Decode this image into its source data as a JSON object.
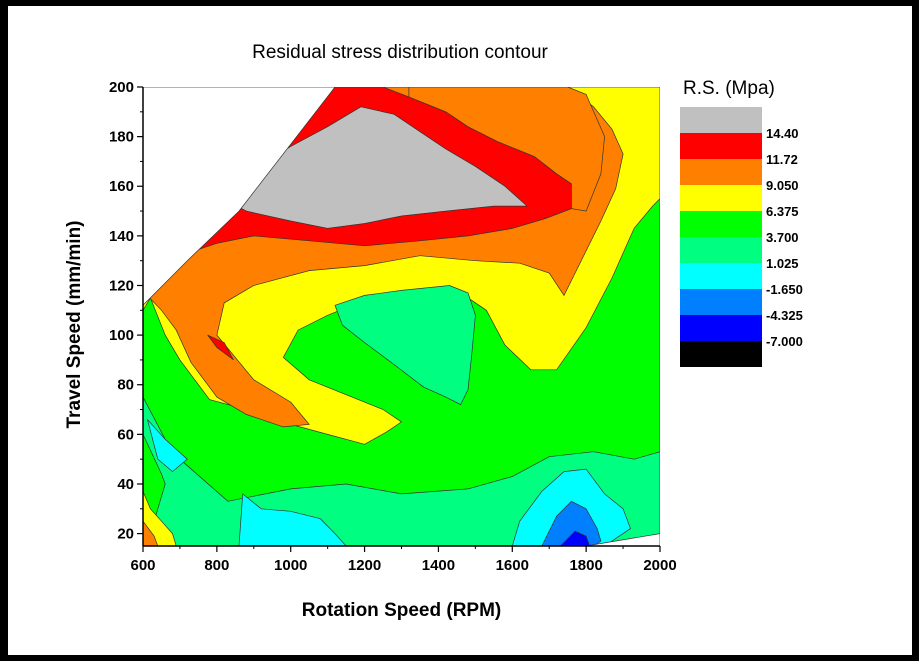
{
  "chart_data": {
    "type": "contour",
    "title": "Residual stress distribution contour",
    "xlabel": "Rotation Speed (RPM)",
    "ylabel": "Travel Speed (mm/min)",
    "xlim": [
      600,
      2000
    ],
    "ylim": [
      15,
      200
    ],
    "x_ticks": [
      600,
      800,
      1000,
      1200,
      1400,
      1600,
      1800,
      2000
    ],
    "y_ticks": [
      20,
      40,
      60,
      80,
      100,
      120,
      140,
      160,
      180,
      200
    ],
    "legend": {
      "title": "R.S. (Mpa)",
      "position": "right",
      "levels": [
        "14.40",
        "11.72",
        "9.050",
        "6.375",
        "3.700",
        "1.025",
        "-1.650",
        "-4.325",
        "-7.000"
      ],
      "colors": [
        "#c0c0c0",
        "#ff0000",
        "#ff8000",
        "#ffff00",
        "#00ff00",
        "#00ff80",
        "#00ffff",
        "#0080ff",
        "#0000ff",
        "#000000"
      ]
    },
    "regions": [
      {
        "level": "1.025 to 3.700",
        "color": "#00ff80",
        "points": [
          [
            600,
            67
          ],
          [
            600,
            15
          ],
          [
            2000,
            15
          ],
          [
            2000,
            200
          ],
          [
            1300,
            200
          ],
          [
            1000,
            200
          ],
          [
            800,
            200
          ],
          [
            600,
            200
          ],
          [
            600,
            80
          ]
        ]
      },
      {
        "level": "3.700 to 6.375",
        "color": "#00ff00",
        "points": [
          [
            600,
            97
          ],
          [
            600,
            75
          ],
          [
            660,
            58
          ],
          [
            700,
            50
          ],
          [
            830,
            33
          ],
          [
            1000,
            38
          ],
          [
            1150,
            40
          ],
          [
            1300,
            36
          ],
          [
            1480,
            38
          ],
          [
            1600,
            43
          ],
          [
            1700,
            51
          ],
          [
            1820,
            53
          ],
          [
            1930,
            50
          ],
          [
            2000,
            53
          ],
          [
            2000,
            200
          ],
          [
            600,
            200
          ]
        ]
      },
      {
        "level": "6.375 to 9.050",
        "color": "#ffff00",
        "points": [
          [
            600,
            110
          ],
          [
            620,
            115
          ],
          [
            660,
            100
          ],
          [
            700,
            90
          ],
          [
            780,
            74
          ],
          [
            880,
            70
          ],
          [
            1000,
            64
          ],
          [
            1100,
            60
          ],
          [
            1200,
            56
          ],
          [
            1260,
            61
          ],
          [
            1300,
            65
          ],
          [
            1250,
            70
          ],
          [
            1150,
            76
          ],
          [
            1050,
            82
          ],
          [
            980,
            91
          ],
          [
            1020,
            102
          ],
          [
            1100,
            108
          ],
          [
            1200,
            114
          ],
          [
            1350,
            118
          ],
          [
            1450,
            118
          ],
          [
            1530,
            110
          ],
          [
            1580,
            96
          ],
          [
            1650,
            86
          ],
          [
            1720,
            86
          ],
          [
            1800,
            103
          ],
          [
            1870,
            123
          ],
          [
            1930,
            143
          ],
          [
            1980,
            152
          ],
          [
            2000,
            155
          ],
          [
            2000,
            200
          ],
          [
            600,
            200
          ]
        ]
      },
      {
        "level": "9.050 to 11.72",
        "color": "#ff8000",
        "points": [
          [
            618,
            115
          ],
          [
            650,
            110
          ],
          [
            690,
            102
          ],
          [
            730,
            89
          ],
          [
            800,
            75
          ],
          [
            880,
            68
          ],
          [
            980,
            63
          ],
          [
            1050,
            64
          ],
          [
            1000,
            73
          ],
          [
            900,
            82
          ],
          [
            800,
            100
          ],
          [
            820,
            113
          ],
          [
            900,
            120
          ],
          [
            1050,
            126
          ],
          [
            1200,
            128
          ],
          [
            1350,
            132
          ],
          [
            1500,
            130
          ],
          [
            1620,
            129
          ],
          [
            1700,
            125
          ],
          [
            1740,
            116
          ],
          [
            1780,
            128
          ],
          [
            1840,
            146
          ],
          [
            1880,
            159
          ],
          [
            1900,
            173
          ],
          [
            1870,
            183
          ],
          [
            1820,
            192
          ],
          [
            1750,
            200
          ],
          [
            600,
            200
          ]
        ]
      },
      {
        "level": "11.72 to 14.40",
        "color": "#ff0000",
        "points": [
          [
            720,
            133
          ],
          [
            800,
            137
          ],
          [
            900,
            140
          ],
          [
            1050,
            138
          ],
          [
            1200,
            136
          ],
          [
            1350,
            138
          ],
          [
            1480,
            140
          ],
          [
            1600,
            143
          ],
          [
            1690,
            147
          ],
          [
            1760,
            151
          ],
          [
            1760,
            161
          ],
          [
            1720,
            165
          ],
          [
            1660,
            172
          ],
          [
            1560,
            178
          ],
          [
            1480,
            184
          ],
          [
            1420,
            190
          ],
          [
            1320,
            196
          ],
          [
            1250,
            200
          ],
          [
            600,
            200
          ]
        ]
      },
      {
        "level": "14.40 to 11.72 (band)",
        "color": "#ff8000",
        "points": [
          [
            1320,
            200
          ],
          [
            1320,
            196
          ],
          [
            1420,
            190
          ],
          [
            1480,
            184
          ],
          [
            1560,
            178
          ],
          [
            1660,
            172
          ],
          [
            1720,
            165
          ],
          [
            1760,
            161
          ],
          [
            1760,
            151
          ],
          [
            1800,
            150
          ],
          [
            1840,
            165
          ],
          [
            1850,
            180
          ],
          [
            1800,
            197
          ],
          [
            1750,
            200
          ]
        ]
      },
      {
        "level": "> 14.40",
        "color": "#c0c0c0",
        "points": [
          [
            790,
            157
          ],
          [
            880,
            150
          ],
          [
            1000,
            146
          ],
          [
            1100,
            143
          ],
          [
            1200,
            145
          ],
          [
            1300,
            148
          ],
          [
            1420,
            150
          ],
          [
            1550,
            152
          ],
          [
            1640,
            152
          ],
          [
            1580,
            160
          ],
          [
            1500,
            168
          ],
          [
            1420,
            175
          ],
          [
            1350,
            182
          ],
          [
            1280,
            189
          ],
          [
            1190,
            192
          ],
          [
            1100,
            184
          ],
          [
            1000,
            176
          ],
          [
            900,
            167
          ]
        ]
      },
      {
        "level": "9.050 to 11.72 (island)",
        "color": "#ff0000",
        "points": [
          [
            775,
            100
          ],
          [
            820,
            97
          ],
          [
            845,
            90
          ],
          [
            800,
            95
          ]
        ]
      },
      {
        "level": "3.700 to 6.375 (left island)",
        "color": "#00ff00",
        "points": [
          [
            600,
            15
          ],
          [
            600,
            60
          ],
          [
            650,
            44
          ],
          [
            660,
            40
          ],
          [
            620,
            20
          ],
          [
            610,
            15
          ]
        ]
      },
      {
        "level": "1.025 to 3.700 (lower-left)",
        "color": "#00ffff",
        "points": [
          [
            612,
            66
          ],
          [
            660,
            58
          ],
          [
            720,
            50
          ],
          [
            680,
            45
          ],
          [
            640,
            50
          ]
        ]
      },
      {
        "level": "1.025 to 3.700 (lower-middle)",
        "color": "#00ffff",
        "points": [
          [
            870,
            36
          ],
          [
            920,
            30
          ],
          [
            1000,
            29
          ],
          [
            1080,
            26
          ],
          [
            1120,
            20
          ],
          [
            1150,
            15
          ],
          [
            860,
            15
          ]
        ]
      },
      {
        "level": "0 to 3.700 (lower-right)",
        "color": "#00ffff",
        "points": [
          [
            1600,
            15
          ],
          [
            1620,
            25
          ],
          [
            1680,
            37
          ],
          [
            1740,
            45
          ],
          [
            1800,
            46
          ],
          [
            1850,
            36
          ],
          [
            1900,
            30
          ],
          [
            1920,
            22
          ],
          [
            1880,
            18
          ],
          [
            1850,
            15
          ]
        ]
      },
      {
        "level": "-1.650 to 1.025",
        "color": "#0080ff",
        "points": [
          [
            1680,
            15
          ],
          [
            1720,
            27
          ],
          [
            1760,
            33
          ],
          [
            1800,
            30
          ],
          [
            1830,
            22
          ],
          [
            1840,
            17
          ],
          [
            1820,
            15
          ]
        ]
      },
      {
        "level": "-4.325 to -1.650",
        "color": "#0000ff",
        "points": [
          [
            1730,
            15
          ],
          [
            1770,
            21
          ],
          [
            1800,
            19
          ],
          [
            1810,
            15
          ]
        ]
      },
      {
        "level": "6.375 to 9.050 (lower-left)",
        "color": "#ffff00",
        "points": [
          [
            600,
            15
          ],
          [
            600,
            37
          ],
          [
            620,
            30
          ],
          [
            650,
            25
          ],
          [
            680,
            20
          ],
          [
            690,
            15
          ]
        ]
      },
      {
        "level": "9.050 to 11.72 (lower-left)",
        "color": "#ff8000",
        "points": [
          [
            600,
            15
          ],
          [
            600,
            25
          ],
          [
            630,
            19
          ],
          [
            640,
            15
          ]
        ]
      },
      {
        "level": "1.025 to 3.700 (center island)",
        "color": "#00ff80",
        "points": [
          [
            1120,
            112
          ],
          [
            1200,
            116
          ],
          [
            1300,
            118
          ],
          [
            1430,
            120
          ],
          [
            1480,
            117
          ],
          [
            1500,
            108
          ],
          [
            1490,
            92
          ],
          [
            1480,
            78
          ],
          [
            1460,
            72
          ],
          [
            1420,
            75
          ],
          [
            1360,
            79
          ],
          [
            1290,
            87
          ],
          [
            1200,
            97
          ],
          [
            1140,
            104
          ]
        ]
      }
    ],
    "blank_regions": [
      {
        "where": "top-left",
        "points": [
          [
            600,
            112
          ],
          [
            600,
            200
          ],
          [
            1120,
            200
          ],
          [
            860,
            150
          ],
          [
            720,
            130
          ]
        ]
      },
      {
        "where": "bottom-right",
        "points": [
          [
            1800,
            15
          ],
          [
            2000,
            15
          ],
          [
            2000,
            20
          ]
        ]
      }
    ]
  }
}
